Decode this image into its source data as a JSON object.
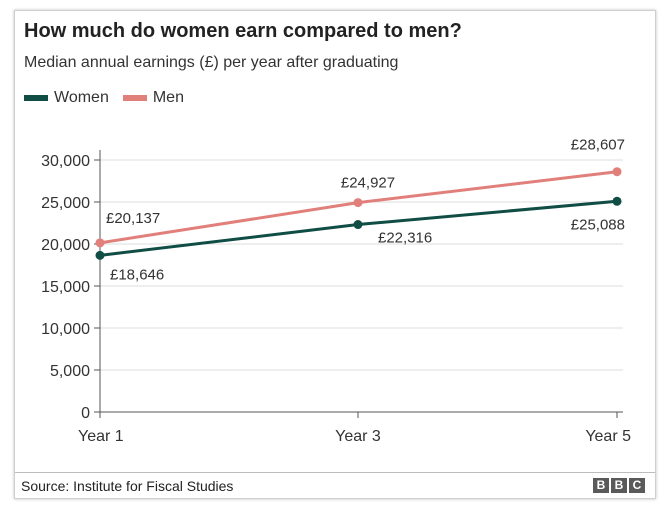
{
  "title": "How much do women earn compared to men?",
  "subtitle": "Median annual earnings (£) per year after graduating",
  "source": "Source: Institute for Fiscal Studies",
  "logo": [
    "B",
    "B",
    "C"
  ],
  "chart_data": {
    "type": "line",
    "categories": [
      "Year 1",
      "Year 3",
      "Year 5"
    ],
    "series": [
      {
        "name": "Women",
        "color": "#0f4d45",
        "values": [
          18646,
          22316,
          25088
        ],
        "labels": [
          "£18,646",
          "£22,316",
          "£25,088"
        ]
      },
      {
        "name": "Men",
        "color": "#e17f7b",
        "values": [
          20137,
          24927,
          28607
        ],
        "labels": [
          "£20,137",
          "£24,927",
          "£28,607"
        ]
      }
    ],
    "ylim": [
      0,
      30000
    ],
    "yticks": [
      0,
      5000,
      10000,
      15000,
      20000,
      25000,
      30000
    ],
    "ytick_labels": [
      "0",
      "5,000",
      "10,000",
      "15,000",
      "20,000",
      "25,000",
      "30,000"
    ],
    "grid": true,
    "legend": "top-left"
  }
}
